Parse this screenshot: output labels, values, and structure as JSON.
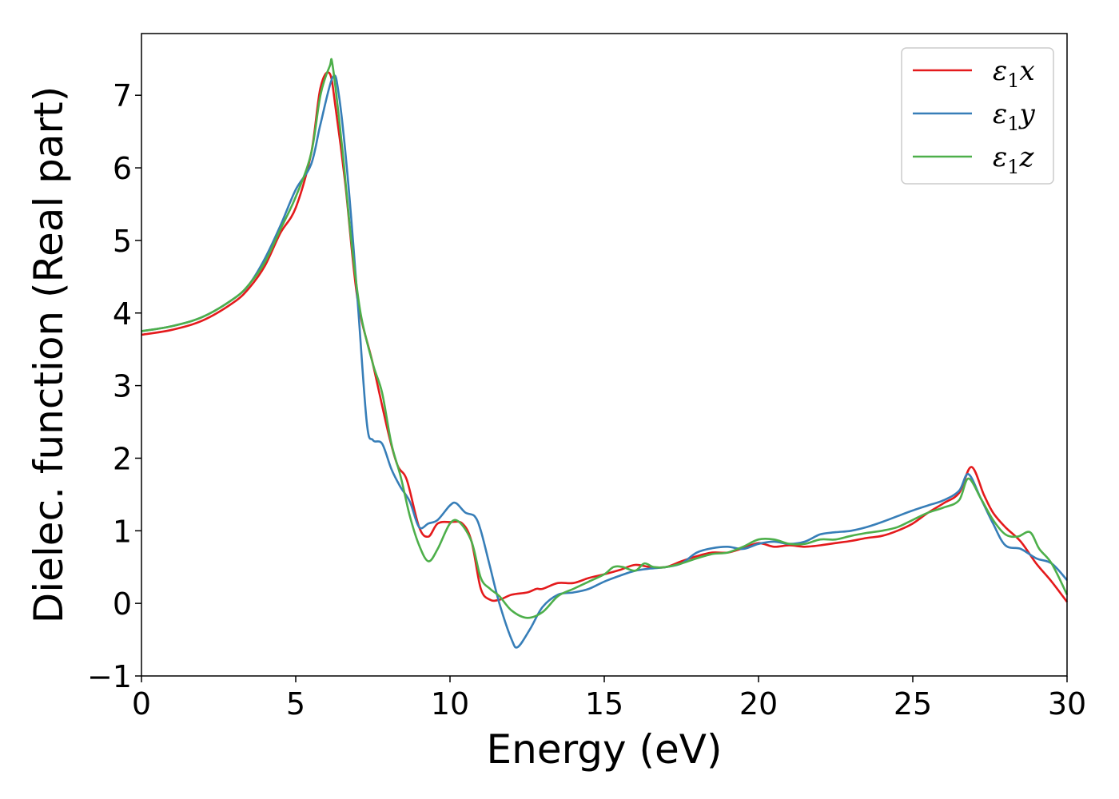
{
  "chart_data": {
    "type": "line",
    "title": "",
    "xlabel": "Energy (eV)",
    "ylabel": "Dielec. function (Real part)",
    "xlim": [
      0,
      30
    ],
    "ylim": [
      -1,
      7.85
    ],
    "xticks": [
      0,
      5,
      10,
      15,
      20,
      25,
      30
    ],
    "yticks": [
      -1,
      0,
      1,
      2,
      3,
      4,
      5,
      6,
      7
    ],
    "xtick_labels": [
      "0",
      "5",
      "10",
      "15",
      "20",
      "25",
      "30"
    ],
    "ytick_labels": [
      "−1",
      "0",
      "1",
      "2",
      "3",
      "4",
      "5",
      "6",
      "7"
    ],
    "grid": false,
    "legend_position": "top-right",
    "series": [
      {
        "name": "ε1x",
        "label_base": "ε",
        "label_sub": "1",
        "label_var": "x",
        "color": "#e41a1c",
        "x": [
          0,
          1,
          2,
          3,
          3.5,
          4,
          4.5,
          5,
          5.5,
          5.8,
          6.1,
          6.3,
          6.6,
          7,
          7.5,
          8,
          8.3,
          8.6,
          9,
          9.3,
          9.6,
          10,
          10.4,
          10.7,
          11,
          11.3,
          11.6,
          12,
          12.5,
          12.8,
          13,
          13.5,
          14,
          14.5,
          15,
          15.5,
          16,
          16.5,
          17,
          17.5,
          18,
          18.5,
          19,
          19.5,
          20,
          20.5,
          21,
          21.5,
          22,
          22.5,
          23,
          23.5,
          24,
          24.5,
          25,
          25.5,
          26,
          26.5,
          26.9,
          27.3,
          27.6,
          28,
          28.5,
          29,
          29.5,
          30
        ],
        "y": [
          3.7,
          3.77,
          3.9,
          4.15,
          4.35,
          4.65,
          5.1,
          5.45,
          6.2,
          7.1,
          7.3,
          6.8,
          5.8,
          4.2,
          3.3,
          2.35,
          1.9,
          1.7,
          1.05,
          0.92,
          1.1,
          1.12,
          1.1,
          0.85,
          0.2,
          0.05,
          0.05,
          0.12,
          0.15,
          0.2,
          0.2,
          0.28,
          0.28,
          0.35,
          0.4,
          0.46,
          0.53,
          0.5,
          0.5,
          0.58,
          0.65,
          0.7,
          0.7,
          0.76,
          0.83,
          0.78,
          0.8,
          0.78,
          0.8,
          0.83,
          0.86,
          0.9,
          0.93,
          1.0,
          1.1,
          1.25,
          1.38,
          1.52,
          1.88,
          1.5,
          1.25,
          1.05,
          0.85,
          0.55,
          0.3,
          0.02
        ]
      },
      {
        "name": "ε1y",
        "label_base": "ε",
        "label_sub": "1",
        "label_var": "y",
        "color": "#377eb8",
        "x": [
          0,
          1,
          2,
          3,
          3.5,
          4,
          4.5,
          5,
          5.5,
          5.8,
          6.2,
          6.4,
          6.7,
          7,
          7.3,
          7.5,
          7.8,
          8.1,
          8.4,
          8.7,
          9,
          9.3,
          9.6,
          10,
          10.2,
          10.5,
          10.8,
          11,
          11.3,
          11.6,
          12,
          12.2,
          12.6,
          13,
          13.5,
          14,
          14.5,
          15,
          15.5,
          16,
          16.5,
          17,
          17.5,
          18,
          18.5,
          19,
          19.5,
          20,
          20.5,
          21,
          21.5,
          22,
          22.5,
          23,
          23.5,
          24,
          24.5,
          25,
          25.5,
          26,
          26.5,
          26.8,
          27.2,
          27.6,
          28,
          28.5,
          29,
          29.5,
          30
        ],
        "y": [
          3.75,
          3.82,
          3.95,
          4.2,
          4.4,
          4.75,
          5.2,
          5.7,
          6.05,
          6.6,
          7.25,
          7.0,
          5.8,
          4.2,
          2.5,
          2.25,
          2.2,
          1.85,
          1.6,
          1.4,
          1.05,
          1.1,
          1.15,
          1.35,
          1.38,
          1.25,
          1.2,
          1.0,
          0.5,
          0.0,
          -0.5,
          -0.6,
          -0.35,
          -0.05,
          0.12,
          0.15,
          0.2,
          0.3,
          0.38,
          0.45,
          0.48,
          0.5,
          0.55,
          0.7,
          0.76,
          0.78,
          0.75,
          0.82,
          0.85,
          0.82,
          0.85,
          0.95,
          0.98,
          1.0,
          1.05,
          1.12,
          1.2,
          1.28,
          1.35,
          1.42,
          1.55,
          1.78,
          1.45,
          1.1,
          0.8,
          0.75,
          0.62,
          0.55,
          0.32
        ]
      },
      {
        "name": "ε1z",
        "label_base": "ε",
        "label_sub": "1",
        "label_var": "z",
        "color": "#4daf4a",
        "x": [
          0,
          1,
          2,
          3,
          3.5,
          4,
          4.5,
          5,
          5.5,
          5.8,
          6.1,
          6.2,
          6.5,
          6.8,
          7.1,
          7.5,
          7.8,
          8.1,
          8.4,
          8.7,
          9,
          9.3,
          9.6,
          10,
          10.3,
          10.7,
          11,
          11.3,
          11.6,
          12,
          12.5,
          13,
          13.5,
          14,
          14.5,
          15,
          15.3,
          15.6,
          16,
          16.3,
          16.6,
          17,
          17.5,
          18,
          18.5,
          19,
          19.5,
          20,
          20.5,
          21,
          21.5,
          22,
          22.5,
          23,
          23.5,
          24,
          24.5,
          25,
          25.5,
          26,
          26.5,
          26.8,
          27.2,
          27.6,
          28,
          28.4,
          28.8,
          29.1,
          29.5,
          30
        ],
        "y": [
          3.75,
          3.82,
          3.95,
          4.2,
          4.4,
          4.7,
          5.15,
          5.6,
          6.2,
          7.0,
          7.4,
          7.4,
          6.3,
          5.0,
          4.0,
          3.3,
          2.9,
          2.2,
          1.75,
          1.2,
          0.8,
          0.58,
          0.75,
          1.1,
          1.12,
          0.85,
          0.35,
          0.2,
          0.1,
          -0.1,
          -0.2,
          -0.12,
          0.1,
          0.2,
          0.3,
          0.4,
          0.5,
          0.5,
          0.45,
          0.55,
          0.5,
          0.5,
          0.55,
          0.62,
          0.68,
          0.7,
          0.78,
          0.88,
          0.88,
          0.82,
          0.82,
          0.88,
          0.88,
          0.93,
          0.97,
          1.0,
          1.05,
          1.15,
          1.25,
          1.32,
          1.42,
          1.72,
          1.45,
          1.15,
          0.95,
          0.92,
          0.98,
          0.75,
          0.55,
          0.12
        ]
      }
    ]
  }
}
